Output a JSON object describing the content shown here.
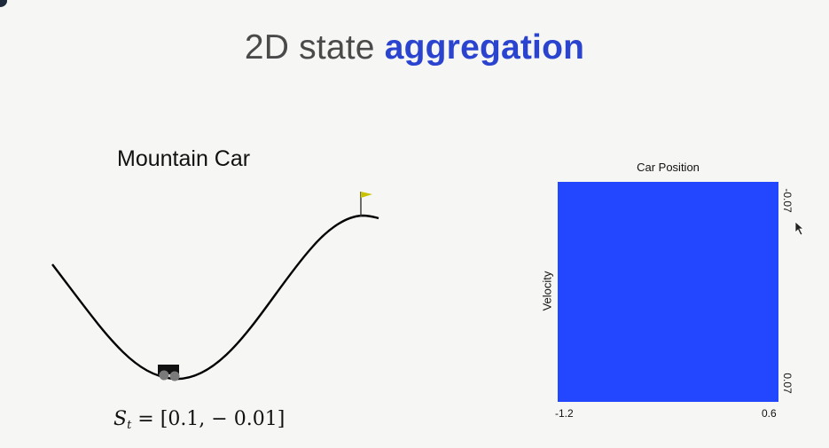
{
  "slide": {
    "title_plain": "2D state ",
    "title_accent": "aggregation"
  },
  "environment": {
    "title": "Mountain Car",
    "state_symbol": "S",
    "state_subscript": "t",
    "state_value": " = [0.1, − 0.01]"
  },
  "plot": {
    "title": "Car Position",
    "ylabel": "Velocity",
    "x_tick_min": "-1.2",
    "x_tick_max": "0.6",
    "y_tick_top": "-0.07",
    "y_tick_bottom": "0.07",
    "fill_color": "#2346ff"
  },
  "colors": {
    "accent": "#2b44cf",
    "flag": "#c8c200"
  }
}
